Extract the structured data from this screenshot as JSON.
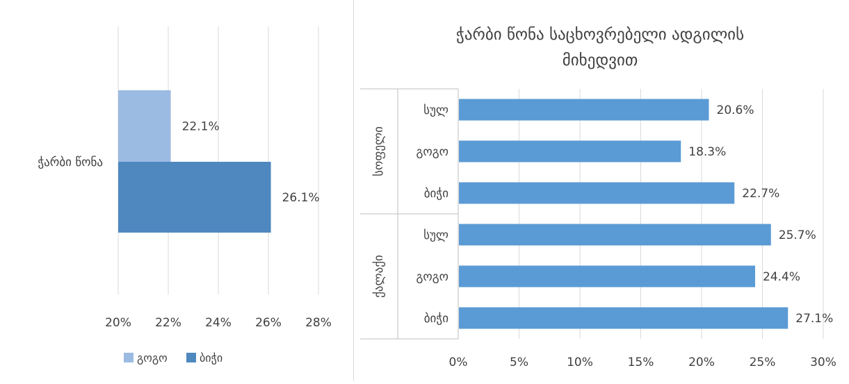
{
  "chart_data": [
    {
      "type": "bar",
      "orientation": "horizontal",
      "title": "",
      "categories": [
        "ჭარბი წონა"
      ],
      "series": [
        {
          "name": "გოგო",
          "values": [
            22.1
          ],
          "color": "#9cbbe2",
          "labels": [
            "22.1%"
          ]
        },
        {
          "name": "ბიჭი",
          "values": [
            26.1
          ],
          "color": "#4f88bf",
          "labels": [
            "26.1%"
          ]
        }
      ],
      "xlim": [
        20,
        28
      ],
      "xticks": [
        "20%",
        "22%",
        "24%",
        "26%",
        "28%"
      ],
      "xtick_values": [
        20,
        22,
        24,
        26,
        28
      ],
      "grid": true,
      "legend": "bottom"
    },
    {
      "type": "bar",
      "orientation": "horizontal",
      "title": "ჭარბი წონა საცხოვრებელი ადგილის მიხედვით",
      "title_lines": [
        "ჭარბი წონა საცხოვრებელი ადგილის",
        "მიხედვით"
      ],
      "groups": [
        {
          "name": "სოფელი",
          "categories": [
            "სულ",
            "გოგო",
            "ბიჭი"
          ],
          "values": [
            20.6,
            18.3,
            22.7
          ],
          "labels": [
            "20.6%",
            "18.3%",
            "22.7%"
          ]
        },
        {
          "name": "ქალაქი",
          "categories": [
            "სულ",
            "გოგო",
            "ბიჭი"
          ],
          "values": [
            25.7,
            24.4,
            27.1
          ],
          "labels": [
            "25.7%",
            "24.4%",
            "27.1%"
          ]
        }
      ],
      "bar_color": "#5b9bd5",
      "xlim": [
        0,
        30
      ],
      "xticks": [
        "0%",
        "5%",
        "10%",
        "15%",
        "20%",
        "25%",
        "30%"
      ],
      "xtick_values": [
        0,
        5,
        10,
        15,
        20,
        25,
        30
      ],
      "grid": true
    }
  ]
}
